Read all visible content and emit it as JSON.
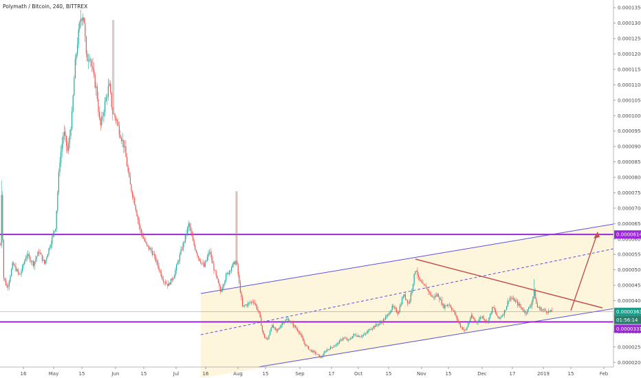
{
  "header": {
    "title": "Polymath / Bitcoin, 240, BITTREX"
  },
  "colors": {
    "up": "#26a69a",
    "down": "#ef5350",
    "channel": "#5b4fe0",
    "channel_fill": "#fdf6dc",
    "level": "#9c27d8",
    "trendline": "#c0504d",
    "price_tag": "#1f9a87"
  },
  "chart_data": {
    "type": "candlestick",
    "x_ticks": [
      "16",
      "May",
      "15",
      "Jun",
      "15",
      "Jul",
      "16",
      "Aug",
      "15",
      "Sep",
      "17",
      "Oct",
      "15",
      "Nov",
      "15",
      "Dec",
      "17",
      "2019",
      "15",
      "Feb"
    ],
    "y_ticks": [
      "0.00002000",
      "0.00002500",
      "0.00003000",
      "0.00003500",
      "0.00004000",
      "0.00004500",
      "0.00005000",
      "0.00005500",
      "0.00006000",
      "0.00006500",
      "0.00007000",
      "0.00007500",
      "0.00008000",
      "0.00008500",
      "0.00009000",
      "0.00009500",
      "0.00010000",
      "0.00010500",
      "0.00011000",
      "0.00011500",
      "0.00012000",
      "0.00012500",
      "0.00013000",
      "0.00013500"
    ],
    "ylim": [
      1.85e-05,
      0.0001375
    ],
    "price_labels": {
      "upper_level": "0.00006147",
      "current": "0.00003639",
      "countdown": "01:56:14",
      "lower_level": "0.00003312"
    },
    "levels": [
      6.147e-05,
      3.312e-05
    ],
    "current_price": 3.639e-05,
    "path": [
      [
        0,
        5.8e-05
      ],
      [
        2,
        7.9e-05
      ],
      [
        4,
        4.8e-05
      ],
      [
        10,
        4.4e-05
      ],
      [
        18,
        5.2e-05
      ],
      [
        28,
        4.8e-05
      ],
      [
        38,
        5.5e-05
      ],
      [
        48,
        5.2e-05
      ],
      [
        56,
        5.6e-05
      ],
      [
        64,
        5.2e-05
      ],
      [
        72,
        5.8e-05
      ],
      [
        80,
        6.4e-05
      ],
      [
        86,
        8.5e-05
      ],
      [
        92,
        9.5e-05
      ],
      [
        98,
        8.8e-05
      ],
      [
        104,
        0.0001
      ],
      [
        108,
        0.000115
      ],
      [
        112,
        0.000124
      ],
      [
        117,
        0.000132
      ],
      [
        121,
        0.000133
      ],
      [
        125,
        0.000118
      ],
      [
        130,
        0.00012
      ],
      [
        135,
        0.000113
      ],
      [
        140,
        0.000108
      ],
      [
        145,
        9.6e-05
      ],
      [
        152,
        0.000104
      ],
      [
        158,
        0.00011
      ],
      [
        163,
        0.000101
      ],
      [
        168,
        9.9e-05
      ],
      [
        173,
        9.5e-05
      ],
      [
        180,
        9e-05
      ],
      [
        188,
        7.8e-05
      ],
      [
        195,
        7.2e-05
      ],
      [
        203,
        6.3e-05
      ],
      [
        212,
        5.8e-05
      ],
      [
        220,
        5.6e-05
      ],
      [
        228,
        5.2e-05
      ],
      [
        236,
        4.7e-05
      ],
      [
        244,
        4.5e-05
      ],
      [
        252,
        4.8e-05
      ],
      [
        260,
        5.4e-05
      ],
      [
        268,
        6e-05
      ],
      [
        274,
        6.5e-05
      ],
      [
        280,
        5.9e-05
      ],
      [
        288,
        5.4e-05
      ],
      [
        296,
        5.1e-05
      ],
      [
        304,
        5.6e-05
      ],
      [
        312,
        4.9e-05
      ],
      [
        320,
        4.3e-05
      ],
      [
        328,
        4.8e-05
      ],
      [
        336,
        5.1e-05
      ],
      [
        343,
        5.3e-05
      ],
      [
        347,
        4.6e-05
      ],
      [
        352,
        3.8e-05
      ],
      [
        360,
        3.9e-05
      ],
      [
        368,
        4e-05
      ],
      [
        376,
        3.6e-05
      ],
      [
        382,
        2.9e-05
      ],
      [
        388,
        2.7e-05
      ],
      [
        394,
        3.2e-05
      ],
      [
        402,
        3e-05
      ],
      [
        410,
        3.3e-05
      ],
      [
        418,
        3.4e-05
      ],
      [
        426,
        3.2e-05
      ],
      [
        434,
        3e-05
      ],
      [
        442,
        2.6e-05
      ],
      [
        450,
        2.4e-05
      ],
      [
        458,
        2.3e-05
      ],
      [
        466,
        2.15e-05
      ],
      [
        474,
        2.4e-05
      ],
      [
        482,
        2.5e-05
      ],
      [
        490,
        2.6e-05
      ],
      [
        498,
        2.8e-05
      ],
      [
        506,
        2.7e-05
      ],
      [
        514,
        2.9e-05
      ],
      [
        522,
        2.85e-05
      ],
      [
        530,
        2.9e-05
      ],
      [
        538,
        3.1e-05
      ],
      [
        546,
        3.2e-05
      ],
      [
        554,
        3.3e-05
      ],
      [
        562,
        3.5e-05
      ],
      [
        570,
        3.8e-05
      ],
      [
        578,
        3.6e-05
      ],
      [
        586,
        4.2e-05
      ],
      [
        594,
        3.9e-05
      ],
      [
        600,
        4.6e-05
      ],
      [
        604,
        5.1e-05
      ],
      [
        608,
        4.7e-05
      ],
      [
        614,
        4.5e-05
      ],
      [
        620,
        4.4e-05
      ],
      [
        628,
        4.1e-05
      ],
      [
        636,
        4.2e-05
      ],
      [
        644,
        3.8e-05
      ],
      [
        652,
        3.9e-05
      ],
      [
        660,
        3.6e-05
      ],
      [
        668,
        3.2e-05
      ],
      [
        676,
        3e-05
      ],
      [
        684,
        3.5e-05
      ],
      [
        692,
        3.3e-05
      ],
      [
        700,
        3.5e-05
      ],
      [
        708,
        3.3e-05
      ],
      [
        716,
        3.8e-05
      ],
      [
        724,
        3.4e-05
      ],
      [
        732,
        3.6e-05
      ],
      [
        740,
        4.1e-05
      ],
      [
        748,
        4e-05
      ],
      [
        756,
        3.8e-05
      ],
      [
        764,
        3.6e-05
      ],
      [
        772,
        3.9e-05
      ],
      [
        776,
        4.3e-05
      ],
      [
        780,
        3.8e-05
      ],
      [
        788,
        3.7e-05
      ],
      [
        796,
        3.65e-05
      ],
      [
        802,
        3.639e-05
      ]
    ]
  }
}
